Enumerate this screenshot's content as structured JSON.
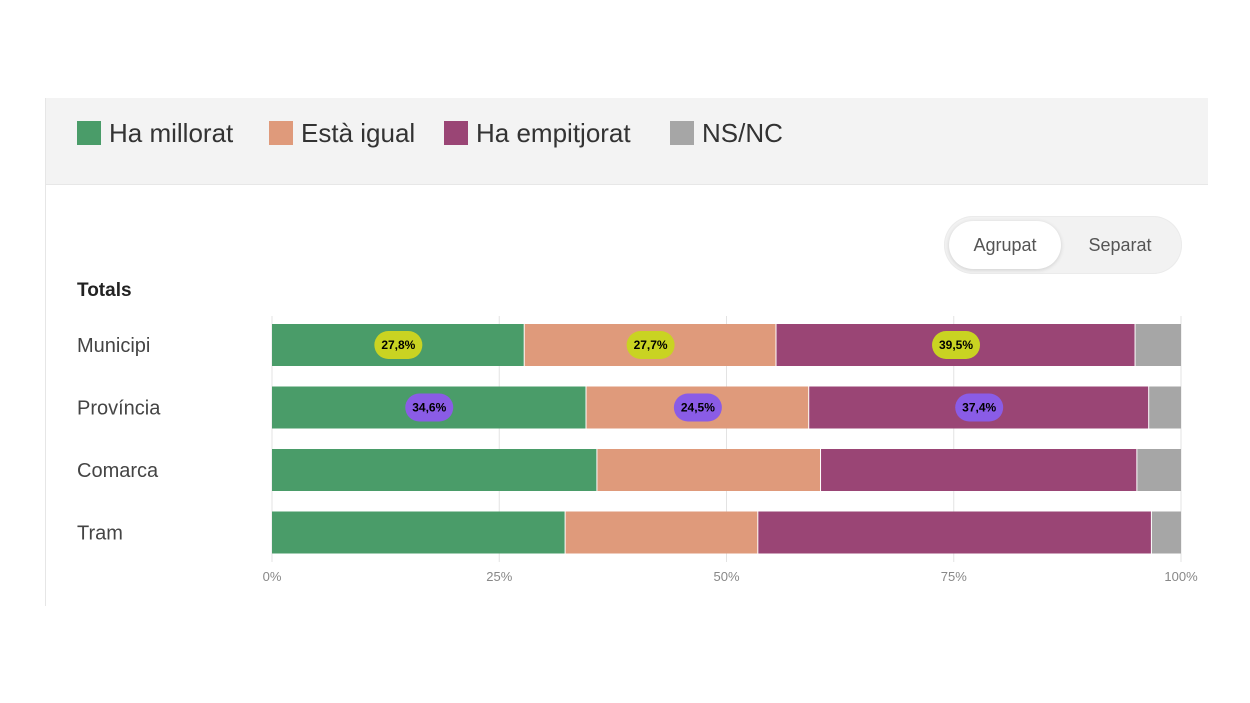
{
  "legend": [
    {
      "label": "Ha millorat",
      "color": "#4a9c69"
    },
    {
      "label": "Està igual",
      "color": "#df9a7b"
    },
    {
      "label": "Ha empitjorat",
      "color": "#9a4575"
    },
    {
      "label": "NS/NC",
      "color": "#a6a6a6"
    }
  ],
  "toggle": {
    "grouped_label": "Agrupat",
    "separate_label": "Separat"
  },
  "section": {
    "title": "Totals"
  },
  "chart_data": {
    "type": "bar",
    "orientation": "horizontal",
    "stacked": true,
    "categories": [
      "Municipi",
      "Província",
      "Comarca",
      "Tram"
    ],
    "series": [
      {
        "name": "Ha millorat",
        "values": [
          27.8,
          34.6,
          35.8,
          32.3
        ],
        "color": "#4a9c69"
      },
      {
        "name": "Està igual",
        "values": [
          27.7,
          24.5,
          24.6,
          21.2
        ],
        "color": "#df9a7b"
      },
      {
        "name": "Ha empitjorat",
        "values": [
          39.5,
          37.4,
          34.8,
          43.3
        ],
        "color": "#9a4575"
      },
      {
        "name": "NS/NC",
        "values": [
          5.0,
          3.5,
          4.8,
          3.2
        ],
        "color": "#a6a6a6"
      }
    ],
    "data_labels": [
      {
        "category": "Municipi",
        "texts": [
          "27,8%",
          "27,7%",
          "39,5%"
        ],
        "color": "#c9d322"
      },
      {
        "category": "Província",
        "texts": [
          "34,6%",
          "24,5%",
          "37,4%"
        ],
        "color": "#8a5ce6"
      }
    ],
    "xlim": [
      0,
      100
    ],
    "x_ticks": [
      "0%",
      "25%",
      "50%",
      "75%",
      "100%"
    ],
    "grid": true,
    "legend_position": "top-left"
  }
}
